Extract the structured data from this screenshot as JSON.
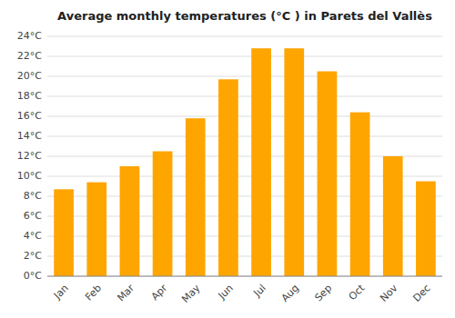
{
  "chart_data": {
    "type": "bar",
    "title": "Average monthly temperatures (°C ) in Parets del Vallès",
    "categories": [
      "Jan",
      "Feb",
      "Mar",
      "Apr",
      "May",
      "Jun",
      "Jul",
      "Aug",
      "Sep",
      "Oct",
      "Nov",
      "Dec"
    ],
    "values": [
      8.7,
      9.4,
      11.0,
      12.5,
      15.8,
      19.7,
      22.8,
      22.8,
      20.5,
      16.4,
      12.0,
      9.5
    ],
    "color": "#FFA500",
    "ylim": [
      0,
      24
    ],
    "yticks": [
      {
        "value": 0,
        "label": "0°C"
      },
      {
        "value": 2,
        "label": "2°C"
      },
      {
        "value": 4,
        "label": "4°C"
      },
      {
        "value": 6,
        "label": "6°C"
      },
      {
        "value": 8,
        "label": "8°C"
      },
      {
        "value": 10,
        "label": "10°C"
      },
      {
        "value": 12,
        "label": "12°C"
      },
      {
        "value": 14,
        "label": "14°C"
      },
      {
        "value": 16,
        "label": "16°C"
      },
      {
        "value": 18,
        "label": "18°C"
      },
      {
        "value": 20,
        "label": "20°C"
      },
      {
        "value": 22,
        "label": "22°C"
      },
      {
        "value": 24,
        "label": "24°C"
      }
    ],
    "grid": true
  }
}
